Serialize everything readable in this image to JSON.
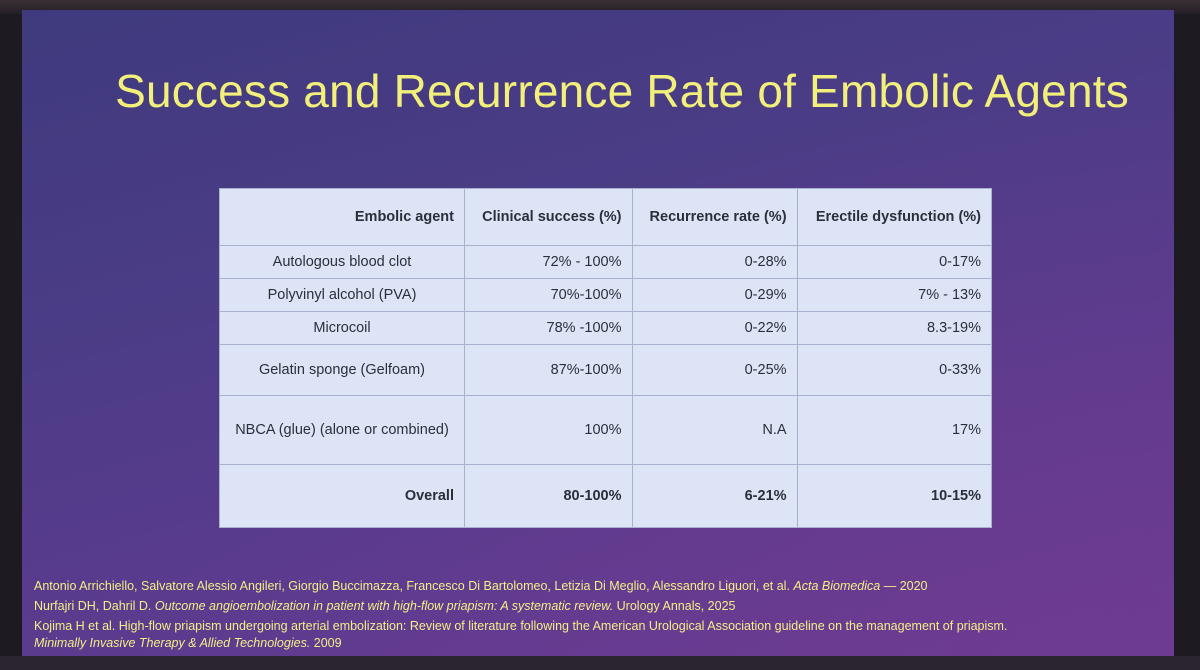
{
  "slide": {
    "title": "Success and Recurrence Rate of Embolic Agents"
  },
  "table": {
    "headers": [
      "Embolic agent",
      "Clinical success (%)",
      "Recurrence rate (%)",
      "Erectile dysfunction (%)"
    ],
    "rows": [
      [
        "Autologous blood clot",
        "72% - 100%",
        "0-28%",
        "0-17%"
      ],
      [
        "Polyvinyl alcohol (PVA)",
        "70%-100%",
        "0-29%",
        "7% - 13%"
      ],
      [
        "Microcoil",
        "78% -100%",
        "0-22%",
        "8.3-19%"
      ],
      [
        "Gelatin sponge (Gelfoam)",
        "87%-100%",
        "0-25%",
        "0-33%"
      ],
      [
        "NBCA (glue) (alone or combined)",
        "100%",
        "N.A",
        "17%"
      ]
    ],
    "overall": [
      "Overall",
      "80-100%",
      "6-21%",
      "10-15%"
    ]
  },
  "references": [
    {
      "authors": "Antonio Arrichiello, Salvatore Alessio Angileri, Giorgio Buccimazza, Francesco Di Bartolomeo, Letizia Di Meglio, Alessandro Liguori, et al. ",
      "journal": "Acta Biomedica",
      "tail": " — 2020"
    },
    {
      "authors": "Nurfajri DH, Dahril D. ",
      "title": "Outcome angioembolization in patient with high-flow priapism: A systematic review.",
      "tail": " Urology Annals, 2025"
    },
    {
      "line1": "Kojima H et al. High-flow priapism undergoing arterial embolization: Review of literature following the American Urological Association guideline on the management of priapism.",
      "journal": "Minimally Invasive Therapy & Allied Technologies.",
      "tail": " 2009"
    }
  ]
}
